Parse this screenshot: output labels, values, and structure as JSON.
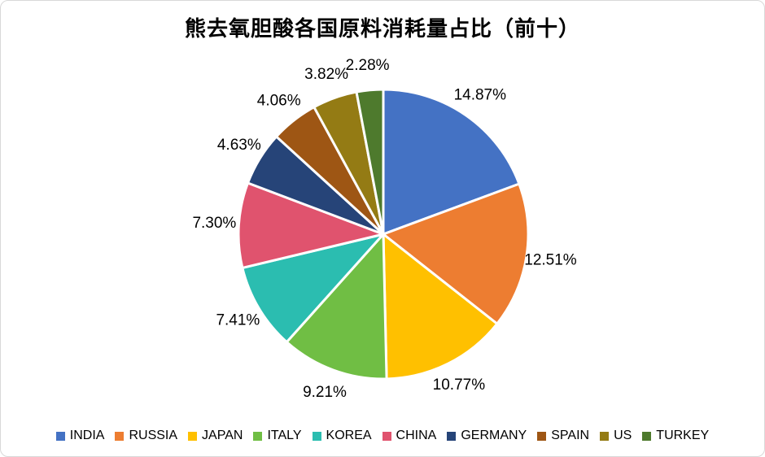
{
  "title": "熊去氧胆酸各国原料消耗量占比（前十）",
  "chart_data": {
    "type": "pie",
    "title": "熊去氧胆酸各国原料消耗量占比（前十）",
    "categories": [
      "INDIA",
      "RUSSIA",
      "JAPAN",
      "ITALY",
      "KOREA",
      "CHINA",
      "GERMANY",
      "SPAIN",
      "US",
      "TURKEY"
    ],
    "values": [
      14.87,
      12.51,
      10.77,
      9.21,
      7.41,
      7.3,
      4.63,
      4.06,
      3.82,
      2.28
    ],
    "labels": [
      "14.87%",
      "12.51%",
      "10.77%",
      "9.21%",
      "7.41%",
      "7.30%",
      "4.63%",
      "4.06%",
      "3.82%",
      "2.28%"
    ],
    "colors": [
      "#4472C4",
      "#ED7D31",
      "#FFC000",
      "#70BE44",
      "#2BBDB0",
      "#E0536E",
      "#264478",
      "#9E5614",
      "#947B14",
      "#4E7A2D"
    ],
    "unit": "%",
    "start_angle_deg": 0,
    "direction": "clockwise",
    "label_position": "outside",
    "legend_position": "bottom",
    "slice_border_color": "#FFFFFF"
  }
}
